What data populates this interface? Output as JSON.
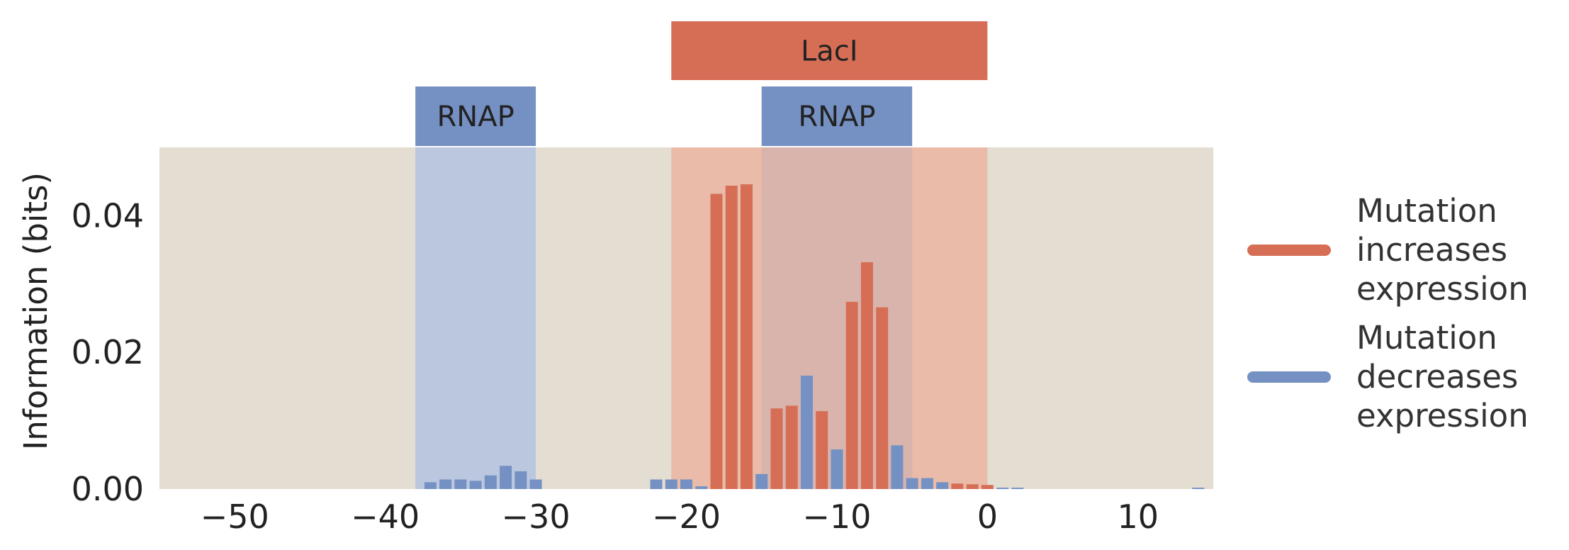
{
  "chart_data": {
    "type": "bar",
    "ylabel": "Information (bits)",
    "xlabel": "",
    "xlim": [
      -55,
      15
    ],
    "ylim": [
      0,
      0.05
    ],
    "xticks": [
      -50,
      -40,
      -30,
      -20,
      -10,
      0,
      10
    ],
    "xtick_labels": [
      "−50",
      "−40",
      "−30",
      "−20",
      "−10",
      "0",
      "10"
    ],
    "yticks": [
      0,
      0.02,
      0.04
    ],
    "ytick_labels": [
      "0.00",
      "0.02",
      "0.04"
    ],
    "grid": false,
    "background": "#e4ddd1",
    "series": [
      {
        "name": "Mutation increases expression",
        "color": "#d66e56",
        "x": [
          -18,
          -17,
          -16,
          -14,
          -13,
          -11,
          -9,
          -8,
          -7,
          -2,
          -1,
          0
        ],
        "values": [
          0.0432,
          0.0444,
          0.0446,
          0.0118,
          0.0122,
          0.0114,
          0.0274,
          0.0332,
          0.0266,
          0.0008,
          0.0007,
          0.0006
        ]
      },
      {
        "name": "Mutation decreases expression",
        "color": "#7591c3",
        "x": [
          -37,
          -36,
          -35,
          -34,
          -33,
          -32,
          -31,
          -30,
          -22,
          -21,
          -20,
          -19,
          -15,
          -12,
          -10,
          -6,
          -5,
          -4,
          -3,
          1,
          2,
          14
        ],
        "values": [
          0.001,
          0.0014,
          0.0014,
          0.0012,
          0.002,
          0.0034,
          0.0026,
          0.0014,
          0.0014,
          0.0014,
          0.0014,
          0.0004,
          0.0022,
          0.0166,
          0.0058,
          0.0064,
          0.0016,
          0.0016,
          0.001,
          0.0002,
          0.0002,
          0.0002
        ]
      }
    ],
    "regions": [
      {
        "label": "RNAP",
        "start": -38,
        "end": -30,
        "color": "#7591c3"
      },
      {
        "label": "LacI",
        "start": -21,
        "end": 0,
        "color": "#d66e56"
      },
      {
        "label": "RNAP",
        "start": -15,
        "end": -5,
        "color": "#7591c3"
      }
    ]
  },
  "legend": {
    "items": [
      {
        "label": "Mutation\nincreases\nexpression",
        "color": "#d66e56"
      },
      {
        "label": "Mutation\ndecreases\nexpression",
        "color": "#7591c3"
      }
    ]
  }
}
